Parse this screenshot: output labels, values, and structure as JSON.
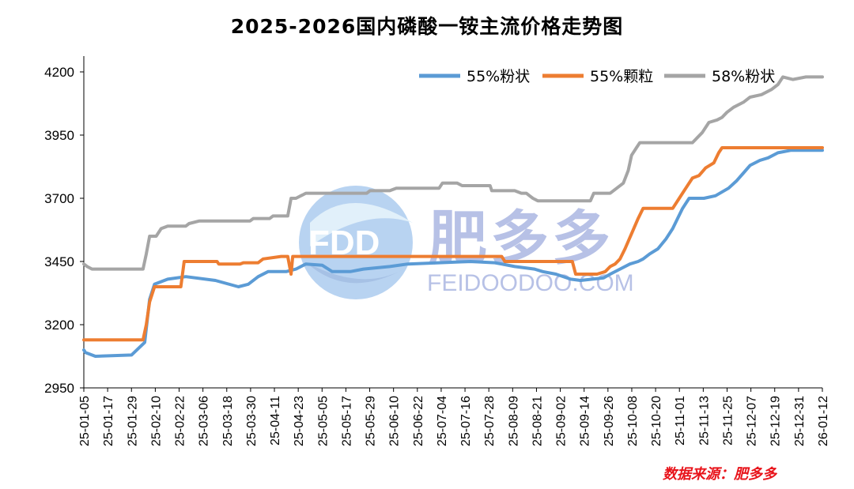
{
  "title": "2025-2026国内磷酸一铵主流价格走势图",
  "source": "数据来源：肥多多",
  "watermark": {
    "cn": "肥多多",
    "en": "FEIDOODOO.COM",
    "logo": "FDD"
  },
  "colors": {
    "s1": "#5b9bd5",
    "s2": "#ed7d31",
    "s3": "#a5a5a5",
    "source": "#e8141b"
  },
  "chart_data": {
    "type": "line",
    "title": "2025-2026国内磷酸一铵主流价格走势图",
    "xlabel": "",
    "ylabel": "",
    "ylim": [
      2950,
      4200
    ],
    "yticks": [
      2950,
      3200,
      3450,
      3700,
      3950,
      4200
    ],
    "xticks": [
      "25-01-05",
      "25-01-17",
      "25-01-29",
      "25-02-10",
      "25-02-22",
      "25-03-06",
      "25-03-18",
      "25-03-30",
      "25-04-11",
      "25-04-23",
      "25-05-05",
      "25-05-17",
      "25-05-29",
      "25-06-10",
      "25-06-22",
      "25-07-04",
      "25-07-16",
      "25-07-28",
      "25-08-09",
      "25-08-21",
      "25-09-02",
      "25-09-14",
      "25-09-26",
      "25-10-08",
      "25-10-20",
      "25-11-01",
      "25-11-13",
      "25-11-25",
      "25-12-07",
      "25-12-19",
      "25-12-31",
      "26-01-12"
    ],
    "legend": "top-right",
    "grid": false,
    "series": [
      {
        "name": "55%粉状",
        "points": [
          [
            0,
            3100
          ],
          [
            1,
            3090
          ],
          [
            7,
            3075
          ],
          [
            29,
            3080
          ],
          [
            37,
            3130
          ],
          [
            40,
            3300
          ],
          [
            43,
            3360
          ],
          [
            51,
            3380
          ],
          [
            62,
            3390
          ],
          [
            80,
            3375
          ],
          [
            94,
            3350
          ],
          [
            100,
            3360
          ],
          [
            106,
            3390
          ],
          [
            112,
            3410
          ],
          [
            123,
            3410
          ],
          [
            129,
            3420
          ],
          [
            135,
            3440
          ],
          [
            145,
            3435
          ],
          [
            151,
            3410
          ],
          [
            162,
            3410
          ],
          [
            170,
            3420
          ],
          [
            186,
            3430
          ],
          [
            197,
            3440
          ],
          [
            216,
            3445
          ],
          [
            235,
            3450
          ],
          [
            250,
            3445
          ],
          [
            262,
            3430
          ],
          [
            274,
            3420
          ],
          [
            279,
            3410
          ],
          [
            287,
            3400
          ],
          [
            296,
            3380
          ],
          [
            302,
            3375
          ],
          [
            309,
            3380
          ],
          [
            316,
            3385
          ],
          [
            320,
            3400
          ],
          [
            326,
            3420
          ],
          [
            332,
            3440
          ],
          [
            337,
            3450
          ],
          [
            340,
            3460
          ],
          [
            344,
            3480
          ],
          [
            349,
            3500
          ],
          [
            354,
            3540
          ],
          [
            358,
            3580
          ],
          [
            361,
            3620
          ],
          [
            364,
            3660
          ],
          [
            368,
            3700
          ],
          [
            377,
            3700
          ],
          [
            384,
            3710
          ],
          [
            392,
            3740
          ],
          [
            397,
            3770
          ],
          [
            401,
            3800
          ],
          [
            405,
            3830
          ],
          [
            411,
            3850
          ],
          [
            416,
            3860
          ],
          [
            422,
            3880
          ],
          [
            430,
            3890
          ],
          [
            443,
            3890
          ],
          [
            449,
            3890
          ]
        ]
      },
      {
        "name": "55%颗粒",
        "points": [
          [
            0,
            3140
          ],
          [
            36,
            3140
          ],
          [
            38,
            3200
          ],
          [
            40,
            3290
          ],
          [
            43,
            3350
          ],
          [
            59,
            3350
          ],
          [
            61,
            3450
          ],
          [
            81,
            3450
          ],
          [
            82,
            3440
          ],
          [
            95,
            3440
          ],
          [
            97,
            3445
          ],
          [
            106,
            3445
          ],
          [
            109,
            3460
          ],
          [
            120,
            3470
          ],
          [
            124,
            3470
          ],
          [
            126,
            3400
          ],
          [
            127,
            3470
          ],
          [
            160,
            3470
          ],
          [
            200,
            3470
          ],
          [
            240,
            3470
          ],
          [
            254,
            3470
          ],
          [
            256,
            3450
          ],
          [
            290,
            3450
          ],
          [
            297,
            3450
          ],
          [
            299,
            3400
          ],
          [
            307,
            3400
          ],
          [
            312,
            3400
          ],
          [
            317,
            3410
          ],
          [
            320,
            3430
          ],
          [
            323,
            3440
          ],
          [
            326,
            3460
          ],
          [
            329,
            3500
          ],
          [
            333,
            3560
          ],
          [
            337,
            3620
          ],
          [
            340,
            3660
          ],
          [
            353,
            3660
          ],
          [
            358,
            3660
          ],
          [
            362,
            3700
          ],
          [
            366,
            3740
          ],
          [
            370,
            3780
          ],
          [
            374,
            3790
          ],
          [
            378,
            3820
          ],
          [
            383,
            3840
          ],
          [
            386,
            3880
          ],
          [
            388,
            3900
          ],
          [
            449,
            3900
          ]
        ]
      },
      {
        "name": "58%粉状",
        "points": [
          [
            0,
            3440
          ],
          [
            2,
            3430
          ],
          [
            5,
            3420
          ],
          [
            20,
            3420
          ],
          [
            36,
            3420
          ],
          [
            38,
            3480
          ],
          [
            40,
            3550
          ],
          [
            44,
            3550
          ],
          [
            47,
            3580
          ],
          [
            51,
            3590
          ],
          [
            62,
            3590
          ],
          [
            64,
            3600
          ],
          [
            70,
            3610
          ],
          [
            82,
            3610
          ],
          [
            97,
            3610
          ],
          [
            101,
            3610
          ],
          [
            103,
            3620
          ],
          [
            113,
            3620
          ],
          [
            115,
            3630
          ],
          [
            124,
            3630
          ],
          [
            126,
            3700
          ],
          [
            129,
            3700
          ],
          [
            135,
            3720
          ],
          [
            150,
            3720
          ],
          [
            156,
            3720
          ],
          [
            172,
            3720
          ],
          [
            174,
            3730
          ],
          [
            186,
            3730
          ],
          [
            190,
            3740
          ],
          [
            216,
            3740
          ],
          [
            218,
            3760
          ],
          [
            227,
            3760
          ],
          [
            230,
            3750
          ],
          [
            247,
            3750
          ],
          [
            248,
            3730
          ],
          [
            262,
            3730
          ],
          [
            266,
            3720
          ],
          [
            269,
            3720
          ],
          [
            271,
            3710
          ],
          [
            273,
            3700
          ],
          [
            276,
            3690
          ],
          [
            290,
            3690
          ],
          [
            301,
            3690
          ],
          [
            308,
            3690
          ],
          [
            310,
            3720
          ],
          [
            320,
            3720
          ],
          [
            324,
            3740
          ],
          [
            328,
            3760
          ],
          [
            331,
            3810
          ],
          [
            333,
            3870
          ],
          [
            336,
            3900
          ],
          [
            338,
            3920
          ],
          [
            346,
            3920
          ],
          [
            350,
            3920
          ],
          [
            360,
            3920
          ],
          [
            370,
            3920
          ],
          [
            373,
            3940
          ],
          [
            376,
            3960
          ],
          [
            380,
            4000
          ],
          [
            385,
            4010
          ],
          [
            388,
            4020
          ],
          [
            391,
            4040
          ],
          [
            395,
            4060
          ],
          [
            401,
            4080
          ],
          [
            405,
            4100
          ],
          [
            412,
            4110
          ],
          [
            418,
            4130
          ],
          [
            422,
            4150
          ],
          [
            425,
            4180
          ],
          [
            431,
            4170
          ],
          [
            439,
            4180
          ],
          [
            449,
            4180
          ]
        ]
      }
    ]
  }
}
